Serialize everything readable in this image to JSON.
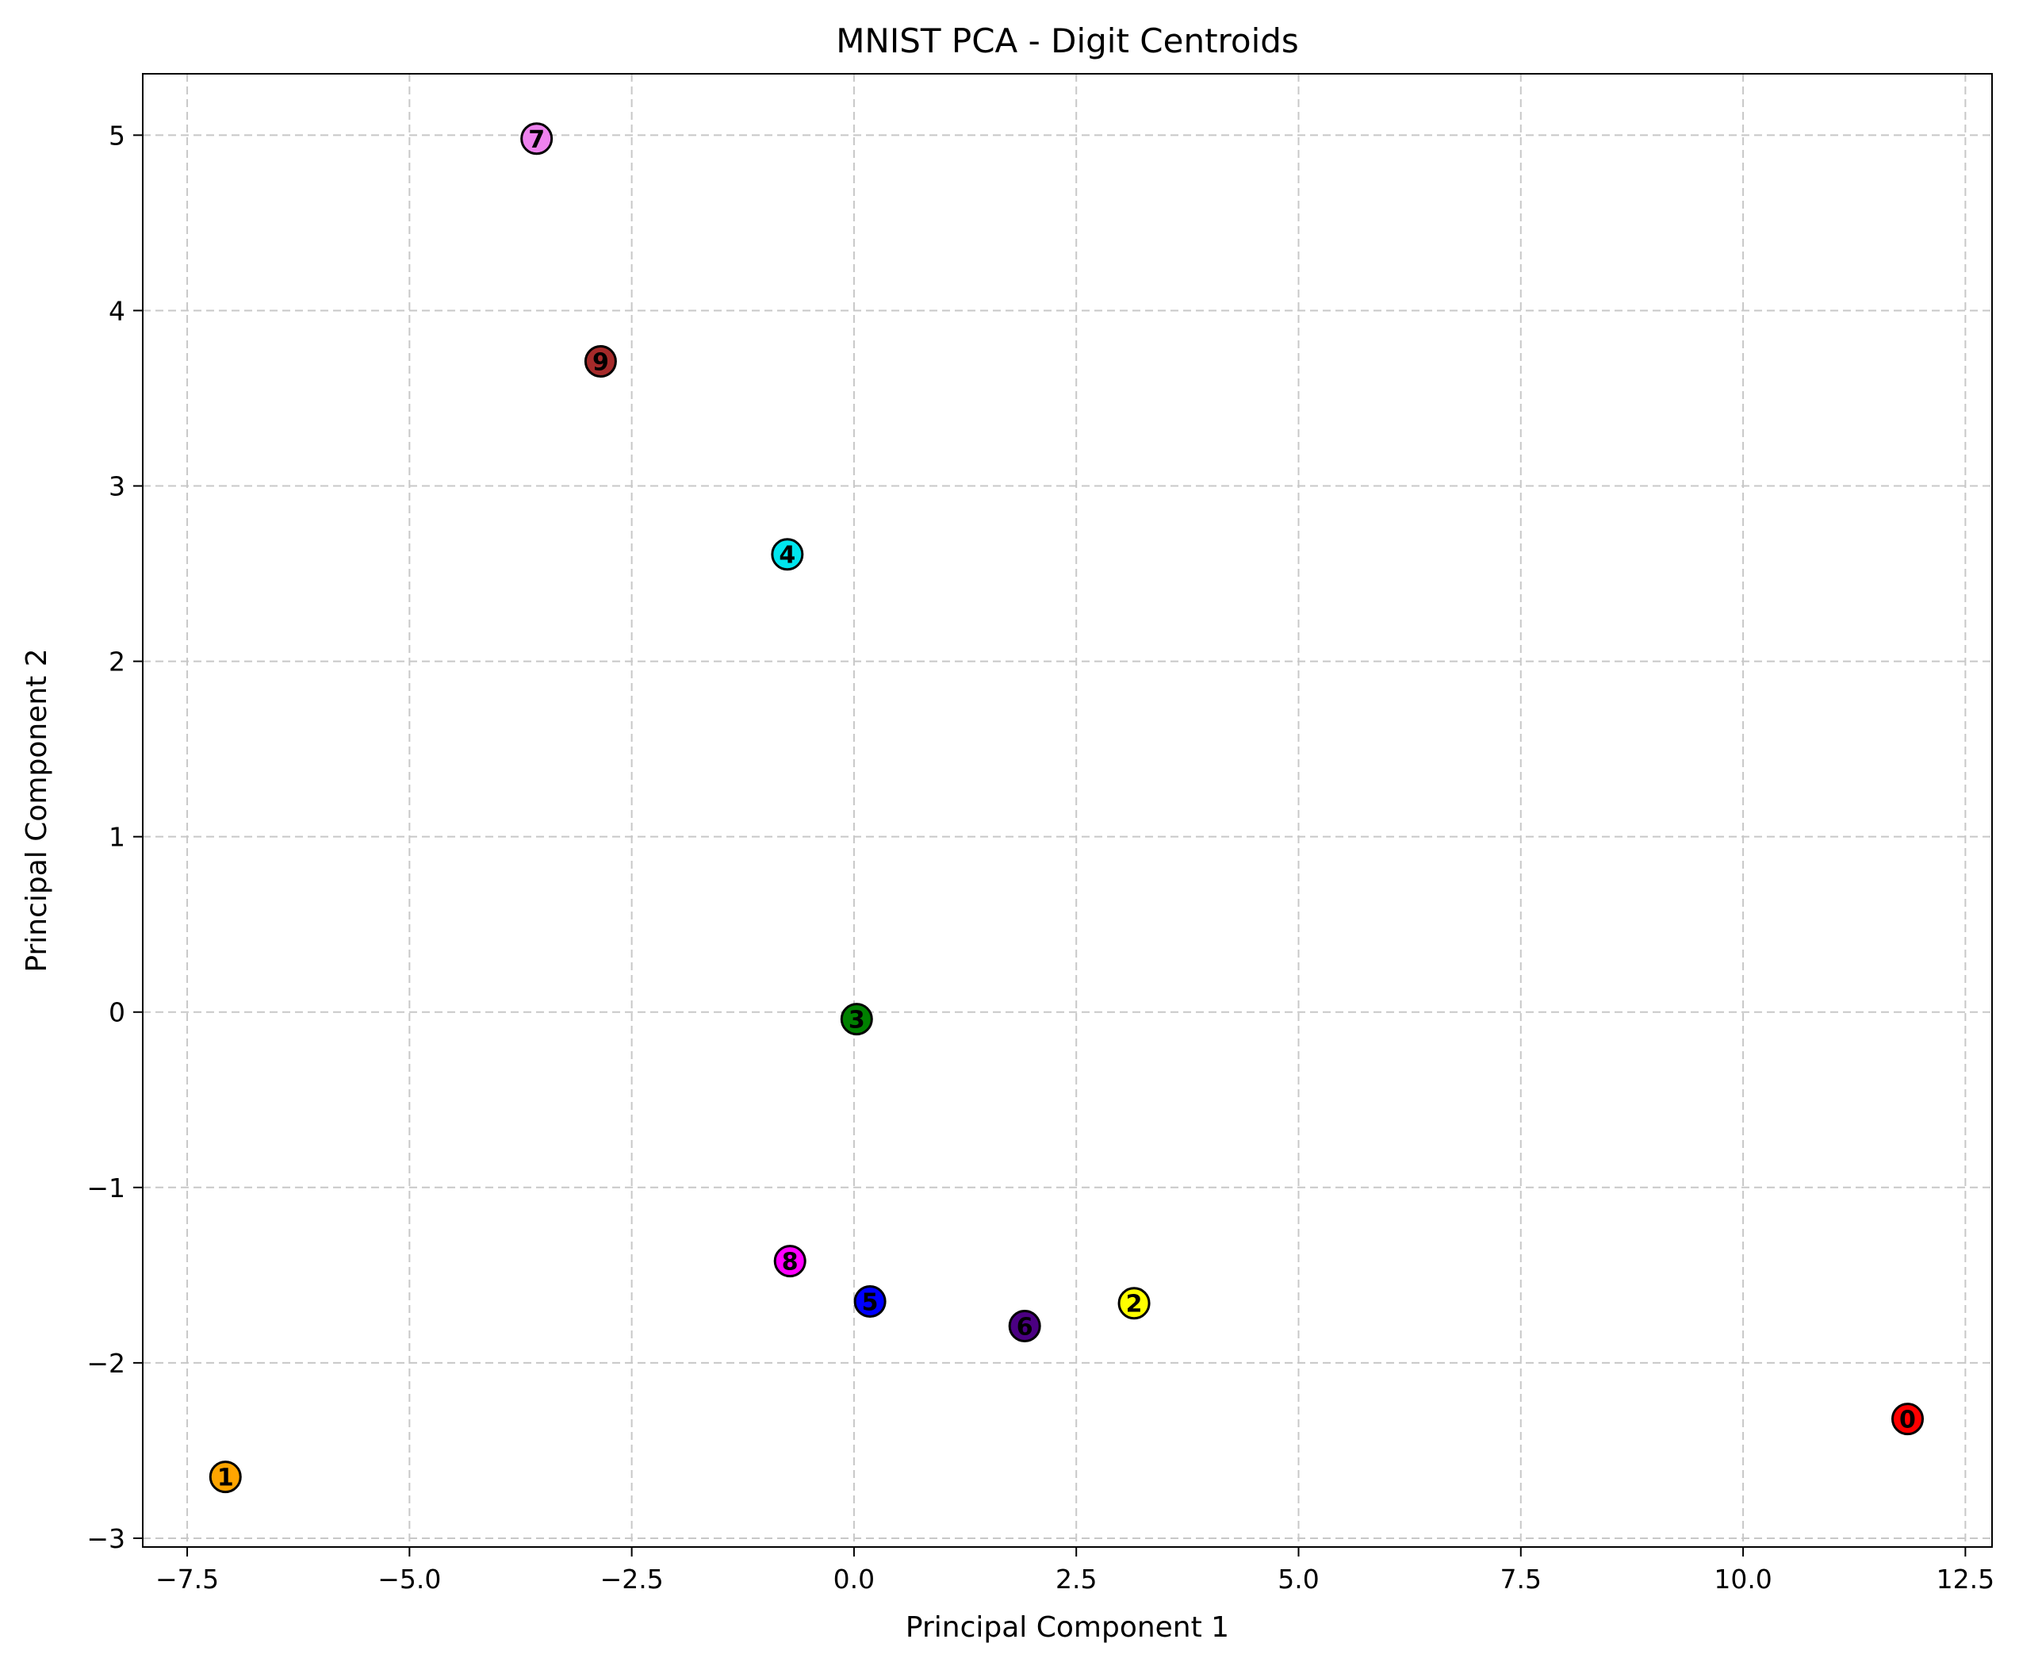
{
  "chart_data": {
    "type": "scatter",
    "title": "MNIST PCA - Digit Centroids",
    "xlabel": "Principal Component 1",
    "ylabel": "Principal Component 2",
    "xlim": [
      -8.0,
      12.8
    ],
    "ylim": [
      -3.05,
      5.35
    ],
    "xticks": [
      -7.5,
      -5.0,
      -2.5,
      0.0,
      2.5,
      5.0,
      7.5,
      10.0,
      12.5
    ],
    "xtick_labels": [
      "−7.5",
      "−5.0",
      "−2.5",
      "0.0",
      "2.5",
      "5.0",
      "7.5",
      "10.0",
      "12.5"
    ],
    "yticks": [
      -3,
      -2,
      -1,
      0,
      1,
      2,
      3,
      4,
      5
    ],
    "ytick_labels": [
      "−3",
      "−2",
      "−1",
      "0",
      "1",
      "2",
      "3",
      "4",
      "5"
    ],
    "grid": true,
    "points": [
      {
        "label": "0",
        "x": 11.85,
        "y": -2.32,
        "color": "#ff0000"
      },
      {
        "label": "1",
        "x": -7.07,
        "y": -2.65,
        "color": "#ffa500"
      },
      {
        "label": "2",
        "x": 3.15,
        "y": -1.66,
        "color": "#ffff00"
      },
      {
        "label": "3",
        "x": 0.03,
        "y": -0.04,
        "color": "#008000"
      },
      {
        "label": "4",
        "x": -0.75,
        "y": 2.61,
        "color": "#00e5ee"
      },
      {
        "label": "5",
        "x": 0.18,
        "y": -1.65,
        "color": "#0000ff"
      },
      {
        "label": "6",
        "x": 1.92,
        "y": -1.79,
        "color": "#4b0082"
      },
      {
        "label": "7",
        "x": -3.57,
        "y": 4.98,
        "color": "#ee82ee"
      },
      {
        "label": "8",
        "x": -0.72,
        "y": -1.42,
        "color": "#ff00ff"
      },
      {
        "label": "9",
        "x": -2.85,
        "y": 3.71,
        "color": "#a52a2a"
      }
    ]
  }
}
